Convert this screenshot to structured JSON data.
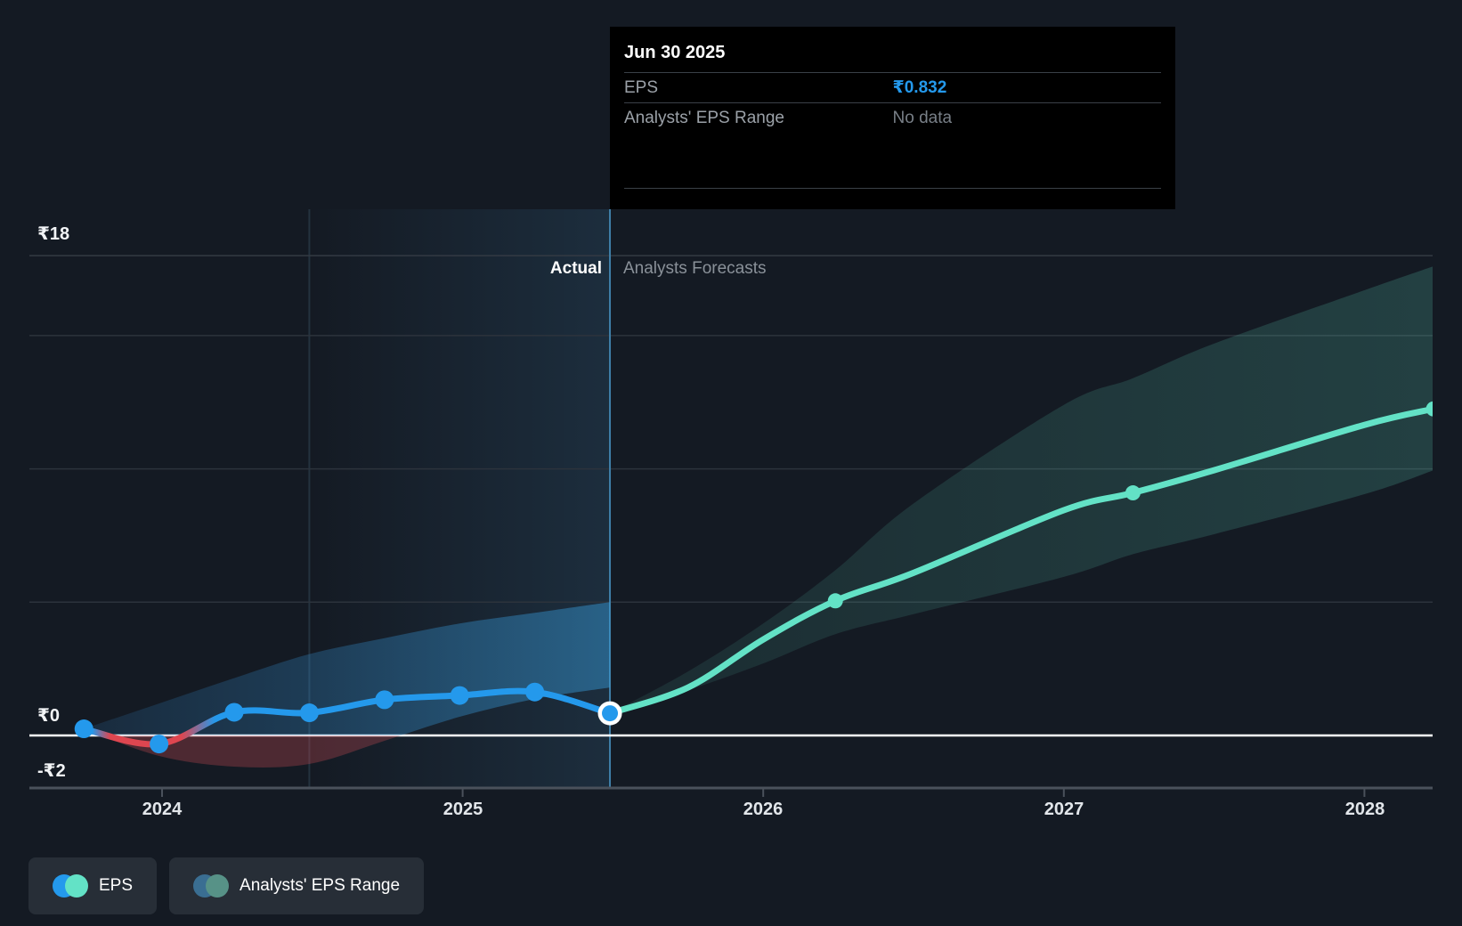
{
  "tooltip": {
    "date": "Jun 30 2025",
    "rows": [
      {
        "label": "EPS",
        "value": "₹0.832"
      },
      {
        "label": "Analysts' EPS Range",
        "value": "No data"
      }
    ]
  },
  "annotations": {
    "actual": "Actual",
    "forecast": "Analysts Forecasts"
  },
  "y_axis": {
    "labels": [
      {
        "text": "₹18",
        "value": 18
      },
      {
        "text": "₹0",
        "value": 0
      },
      {
        "text": "-₹2",
        "value": -2
      }
    ]
  },
  "x_axis": {
    "ticks": [
      "2024",
      "2025",
      "2026",
      "2027",
      "2028"
    ]
  },
  "legend": [
    {
      "label": "EPS",
      "colors": [
        "#2499EC",
        "#63E2C6"
      ]
    },
    {
      "label": "Analysts' EPS Range",
      "colors": [
        "#3A6E92",
        "#579287"
      ]
    }
  ],
  "colors": {
    "background": "#141A23",
    "eps_blue": "#2499EC",
    "eps_negative_red": "#DE4650",
    "negative_fill": "rgba(200,75,85,0.32)",
    "forecast_teal": "#63E2C6",
    "gridline": "#2C333C",
    "zero_line": "#FFFFFF",
    "axis_line": "#4A515B",
    "divider_line": "#3F7FA8",
    "tooltip_bg": "#000000"
  },
  "chart_data": {
    "type": "line",
    "title": "EPS actual and analyst forecast (₹)",
    "currency": "₹",
    "xlim": [
      2023.56,
      2028.23
    ],
    "ylim": [
      -2,
      18
    ],
    "gridline_values": [
      18,
      15,
      10,
      5
    ],
    "zero_value": 0,
    "divider_x": 2025.49,
    "divider_date": "Jun 30 2025",
    "highlight_band_start_x": 2024.49,
    "series": [
      {
        "name": "EPS (actual)",
        "x": [
          2023.74,
          2023.99,
          2024.24,
          2024.49,
          2024.74,
          2024.99,
          2025.24,
          2025.49
        ],
        "values": [
          0.25,
          -0.32,
          0.87,
          0.85,
          1.34,
          1.5,
          1.63,
          0.832
        ]
      },
      {
        "name": "EPS actual range band",
        "x": [
          2023.74,
          2023.99,
          2024.24,
          2024.49,
          2024.74,
          2024.99,
          2025.24,
          2025.49
        ],
        "top": [
          0.25,
          1.2,
          2.15,
          3.05,
          3.65,
          4.2,
          4.6,
          5.0
        ],
        "bottom": [
          0.25,
          -0.77,
          -1.17,
          -1.07,
          -0.2,
          0.7,
          1.37,
          1.8
        ]
      },
      {
        "name": "EPS (analysts forecast)",
        "x": [
          2025.49,
          2025.75,
          2026.0,
          2026.24,
          2026.5,
          2027.0,
          2027.23,
          2027.5,
          2028.0,
          2028.23
        ],
        "values": [
          0.832,
          1.8,
          3.6,
          5.05,
          6.1,
          8.45,
          9.1,
          9.95,
          11.65,
          12.25
        ],
        "marker_x": [
          2026.24,
          2027.23,
          2028.23
        ],
        "marker_values": [
          5.05,
          9.1,
          12.25
        ]
      },
      {
        "name": "Analysts' EPS range band",
        "x": [
          2025.49,
          2025.75,
          2026.0,
          2026.24,
          2026.5,
          2027.0,
          2027.23,
          2027.5,
          2028.0,
          2028.23
        ],
        "top": [
          0.832,
          2.4,
          4.2,
          6.2,
          8.7,
          12.4,
          13.4,
          14.7,
          16.7,
          17.6
        ],
        "bottom": [
          0.832,
          1.7,
          2.7,
          3.8,
          4.55,
          5.95,
          6.8,
          7.55,
          9.05,
          9.95
        ]
      }
    ],
    "highlighted_point": {
      "x": 2025.49,
      "value": 0.832,
      "date": "Jun 30 2025"
    }
  }
}
